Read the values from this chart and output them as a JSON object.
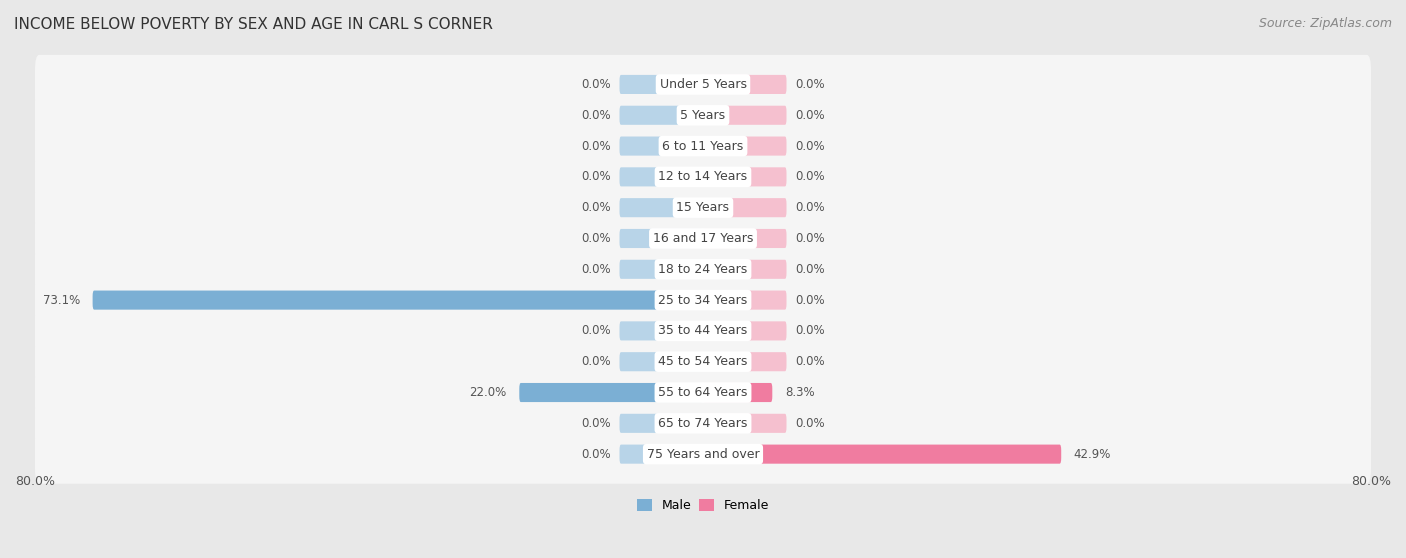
{
  "title": "INCOME BELOW POVERTY BY SEX AND AGE IN CARL S CORNER",
  "source": "Source: ZipAtlas.com",
  "categories": [
    "Under 5 Years",
    "5 Years",
    "6 to 11 Years",
    "12 to 14 Years",
    "15 Years",
    "16 and 17 Years",
    "18 to 24 Years",
    "25 to 34 Years",
    "35 to 44 Years",
    "45 to 54 Years",
    "55 to 64 Years",
    "65 to 74 Years",
    "75 Years and over"
  ],
  "male_values": [
    0.0,
    0.0,
    0.0,
    0.0,
    0.0,
    0.0,
    0.0,
    73.1,
    0.0,
    0.0,
    22.0,
    0.0,
    0.0
  ],
  "female_values": [
    0.0,
    0.0,
    0.0,
    0.0,
    0.0,
    0.0,
    0.0,
    0.0,
    0.0,
    0.0,
    8.3,
    0.0,
    42.9
  ],
  "male_color": "#7bafd4",
  "female_color": "#f07ca0",
  "male_zero_color": "#b8d4e8",
  "female_zero_color": "#f5c0cf",
  "axis_limit": 80.0,
  "zero_stub": 10.0,
  "background_color": "#e8e8e8",
  "row_color": "#f5f5f5",
  "title_fontsize": 11,
  "source_fontsize": 9,
  "label_fontsize": 9,
  "value_fontsize": 8.5,
  "tick_fontsize": 9,
  "bar_height": 0.62
}
